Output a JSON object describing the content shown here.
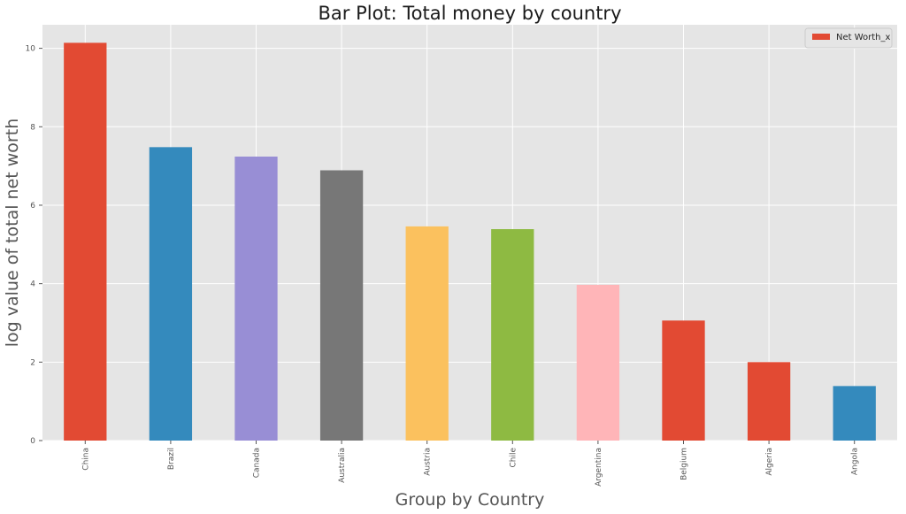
{
  "chart_data": {
    "type": "bar",
    "title": "Bar Plot: Total money by country",
    "xlabel": "Group by Country",
    "ylabel": "log value of total net worth",
    "categories": [
      "China",
      "Brazil",
      "Canada",
      "Australia",
      "Austria",
      "Chile",
      "Argentina",
      "Belgium",
      "Algeria",
      "Angola"
    ],
    "series": [
      {
        "name": "Net Worth_x",
        "values": [
          10.14,
          7.48,
          7.24,
          6.89,
          5.46,
          5.39,
          3.97,
          3.06,
          2.0,
          1.39
        ]
      }
    ],
    "bar_colors": [
      "#E24A33",
      "#348ABD",
      "#988ED5",
      "#777777",
      "#FBC15E",
      "#8EBA42",
      "#FFB5B8",
      "#E24A33",
      "#E24A33",
      "#348ABD"
    ],
    "ylim": [
      0,
      10.6
    ],
    "yticks": [
      0,
      2,
      4,
      6,
      8,
      10
    ],
    "grid": true,
    "legend_position": "top-right",
    "background_color": "#E5E5E5",
    "grid_color": "#FFFFFF"
  }
}
